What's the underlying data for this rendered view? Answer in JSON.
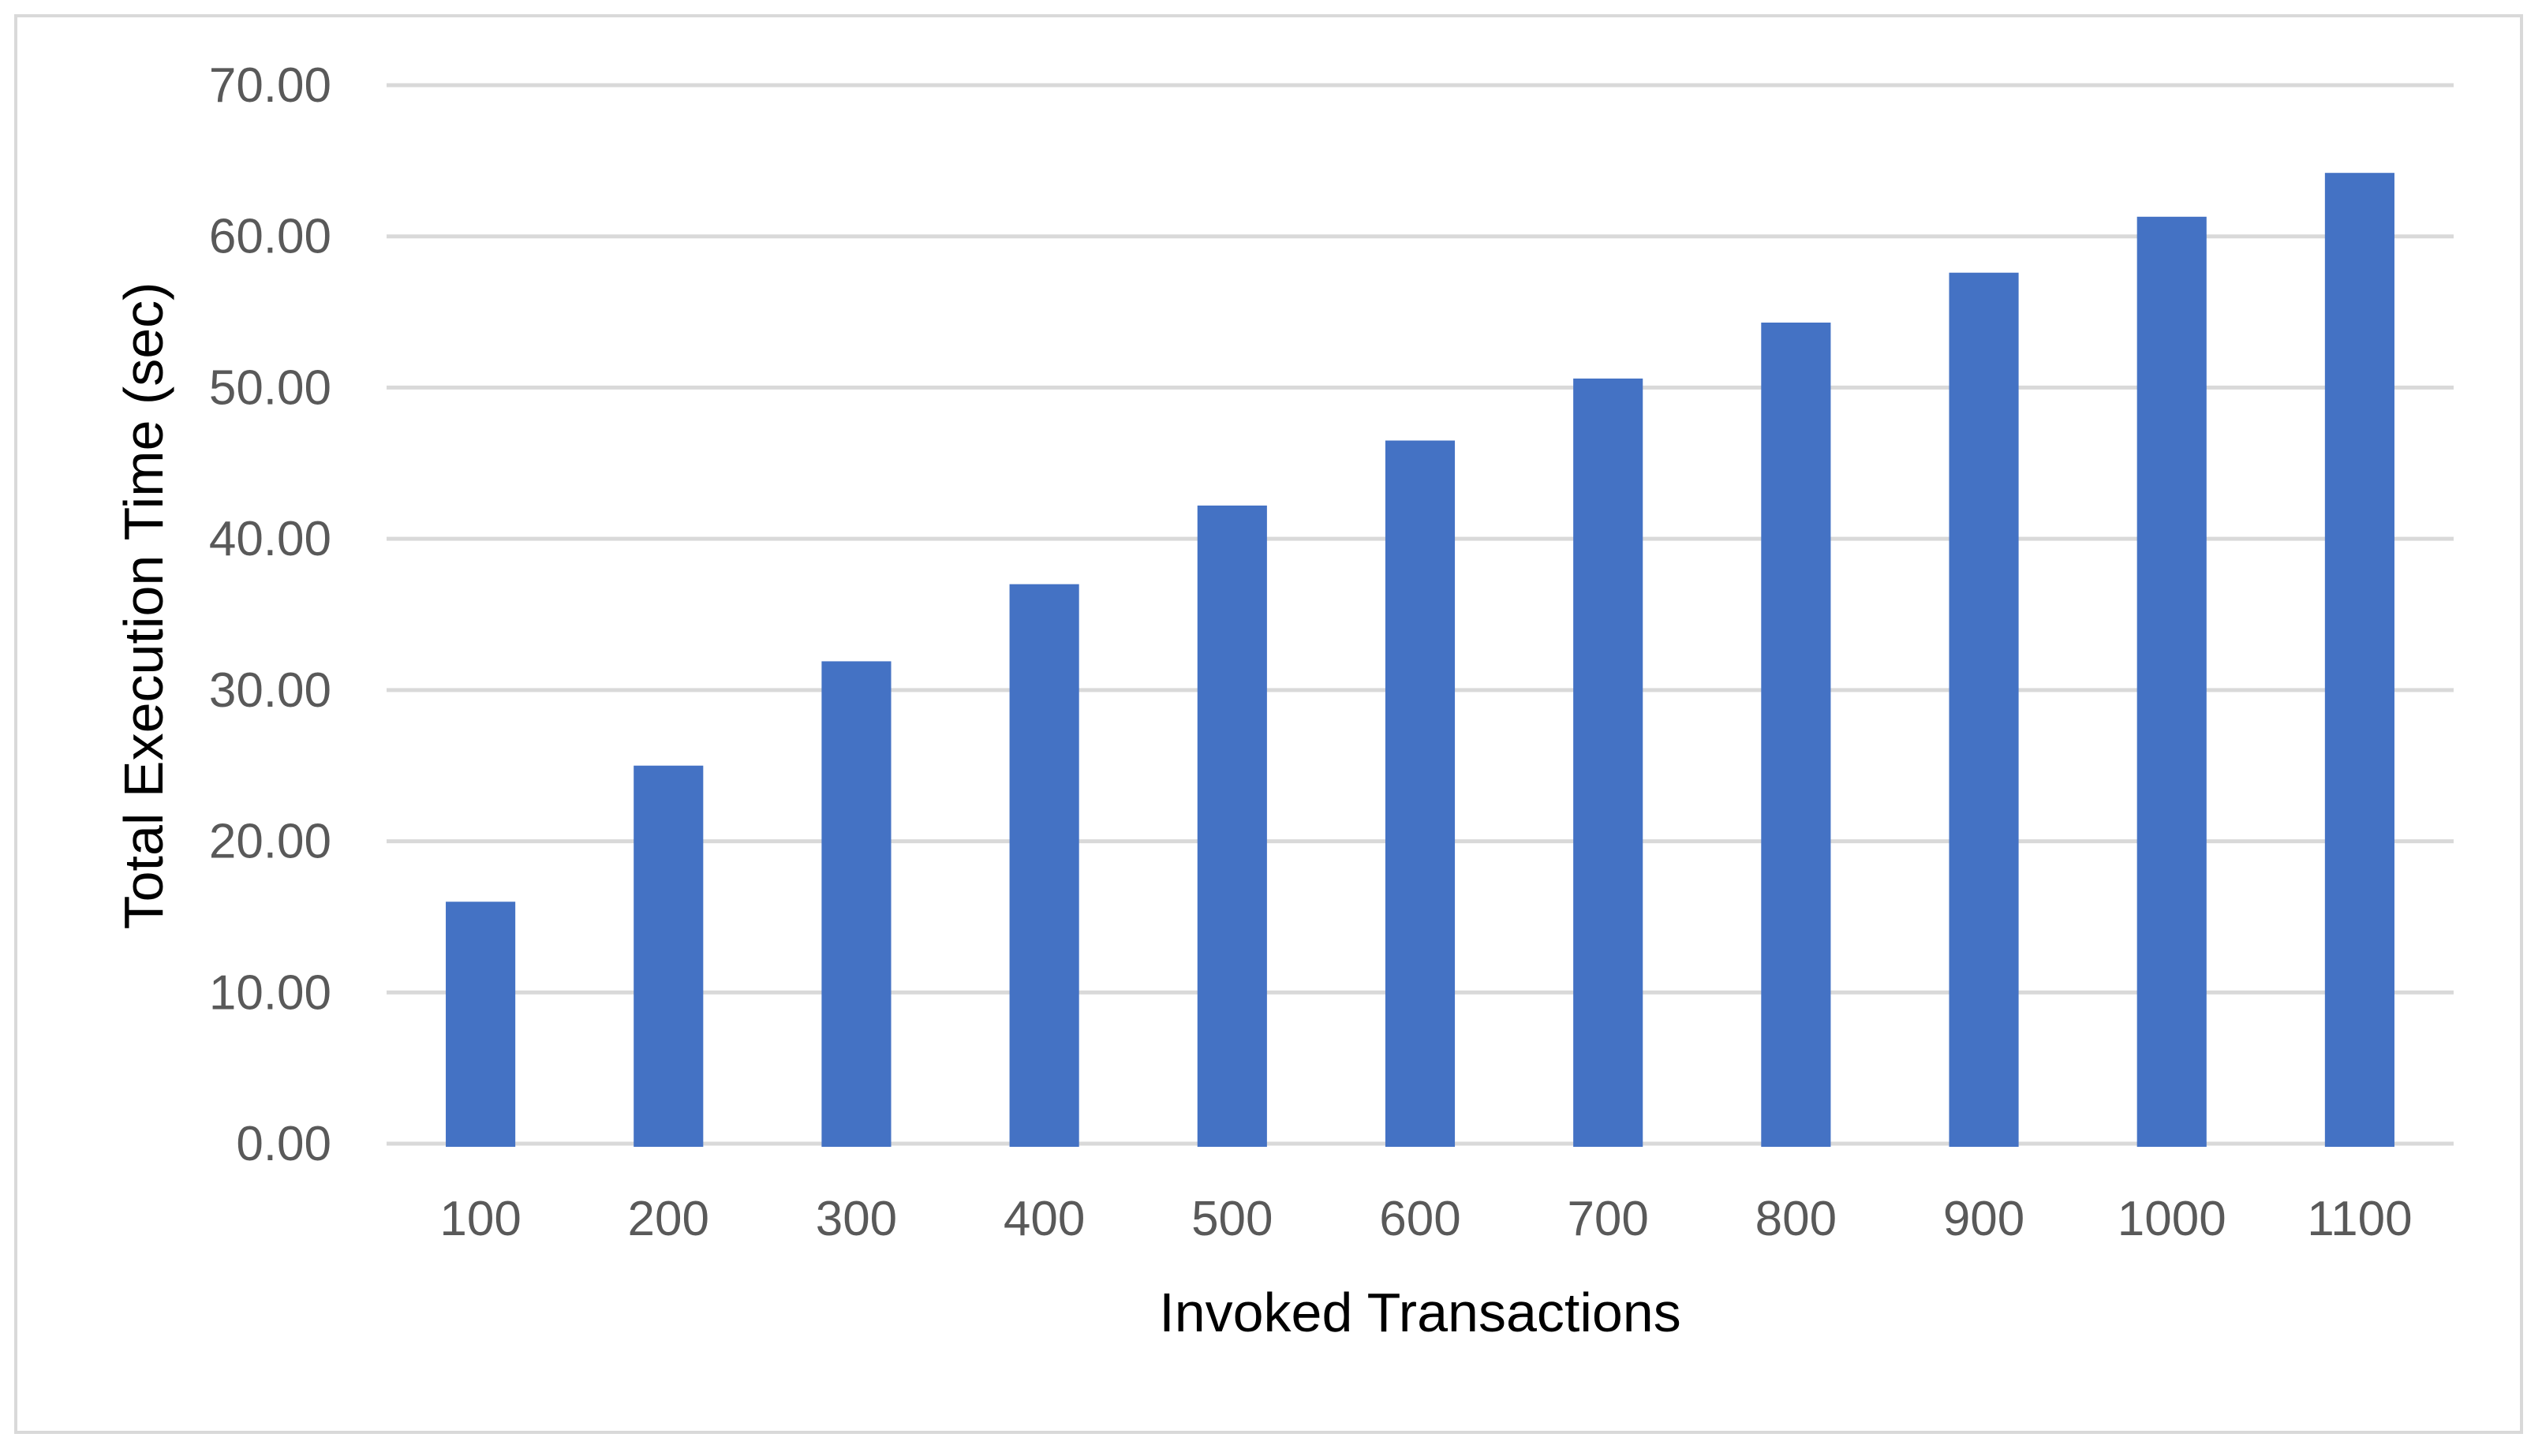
{
  "chart_data": {
    "type": "bar",
    "title": "",
    "xlabel": "Invoked Transactions",
    "ylabel": "Total Execution Time (sec)",
    "categories": [
      "100",
      "200",
      "300",
      "400",
      "500",
      "600",
      "700",
      "800",
      "900",
      "1000",
      "1100"
    ],
    "series": [
      {
        "values": [
          16.0,
          25.0,
          31.9,
          37.0,
          42.2,
          46.5,
          50.6,
          54.3,
          57.6,
          61.3,
          64.2
        ]
      }
    ],
    "ylim": [
      0,
      70
    ],
    "yticks": [
      "0.00",
      "10.00",
      "20.00",
      "30.00",
      "40.00",
      "50.00",
      "60.00",
      "70.00"
    ],
    "grid": true,
    "legend": "none",
    "colors": {
      "bar": "#4472c4",
      "grid": "#d9d9d9",
      "tick_text": "#595959",
      "axis_title": "#000000",
      "frame": "#d9d9d9"
    }
  }
}
